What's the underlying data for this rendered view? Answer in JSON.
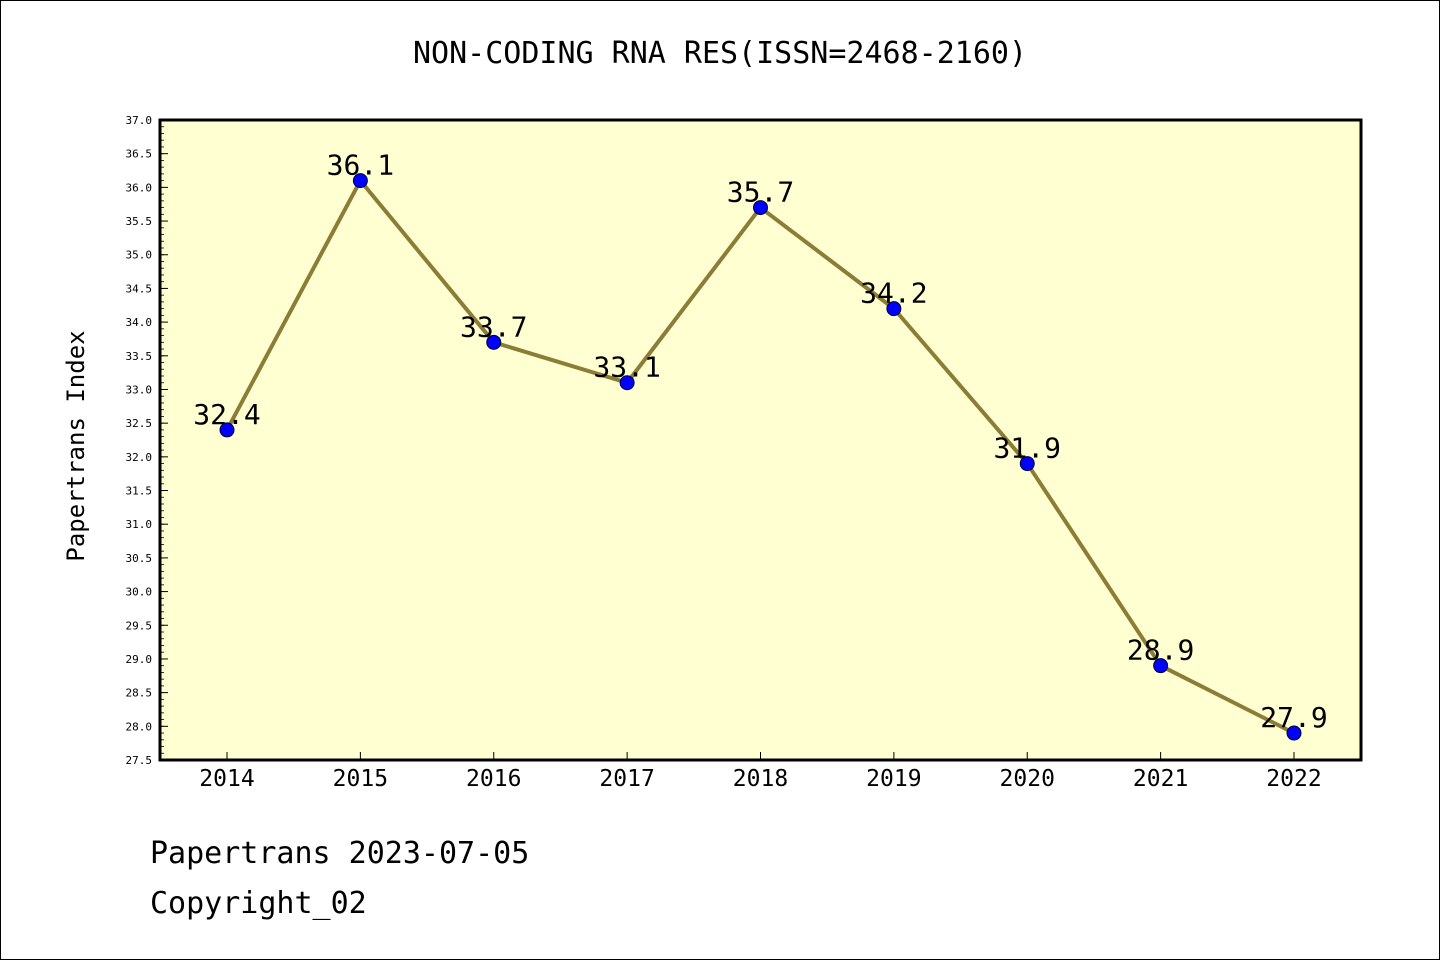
{
  "chart_data": {
    "type": "line",
    "title": "NON-CODING RNA RES(ISSN=2468-2160)",
    "xlabel": "",
    "ylabel": "Papertrans Index",
    "categories": [
      "2014",
      "2015",
      "2016",
      "2017",
      "2018",
      "2019",
      "2020",
      "2021",
      "2022"
    ],
    "series": [
      {
        "values": [
          32.4,
          36.1,
          33.7,
          33.1,
          35.7,
          34.2,
          31.9,
          28.9,
          27.9
        ],
        "labels": [
          "32.4",
          "36.1",
          "33.7",
          "33.1",
          "35.7",
          "34.2",
          "31.9",
          "28.9",
          "27.9"
        ],
        "line_color": "#8b7d35",
        "marker_color": "#0000ff"
      }
    ],
    "ylim": [
      27.5,
      37.0
    ],
    "y_ticks": [
      "27.5",
      "28.0",
      "28.5",
      "29.0",
      "29.5",
      "30.0",
      "30.5",
      "31.0",
      "31.5",
      "32.0",
      "32.5",
      "33.0",
      "33.5",
      "34.0",
      "34.5",
      "35.0",
      "35.5",
      "36.0",
      "36.5",
      "37.0"
    ],
    "plot_background": "#ffffd2",
    "grid": false,
    "legend": "none"
  },
  "footer": {
    "line1": "Papertrans 2023-07-05",
    "line2": "Copyright_02"
  }
}
